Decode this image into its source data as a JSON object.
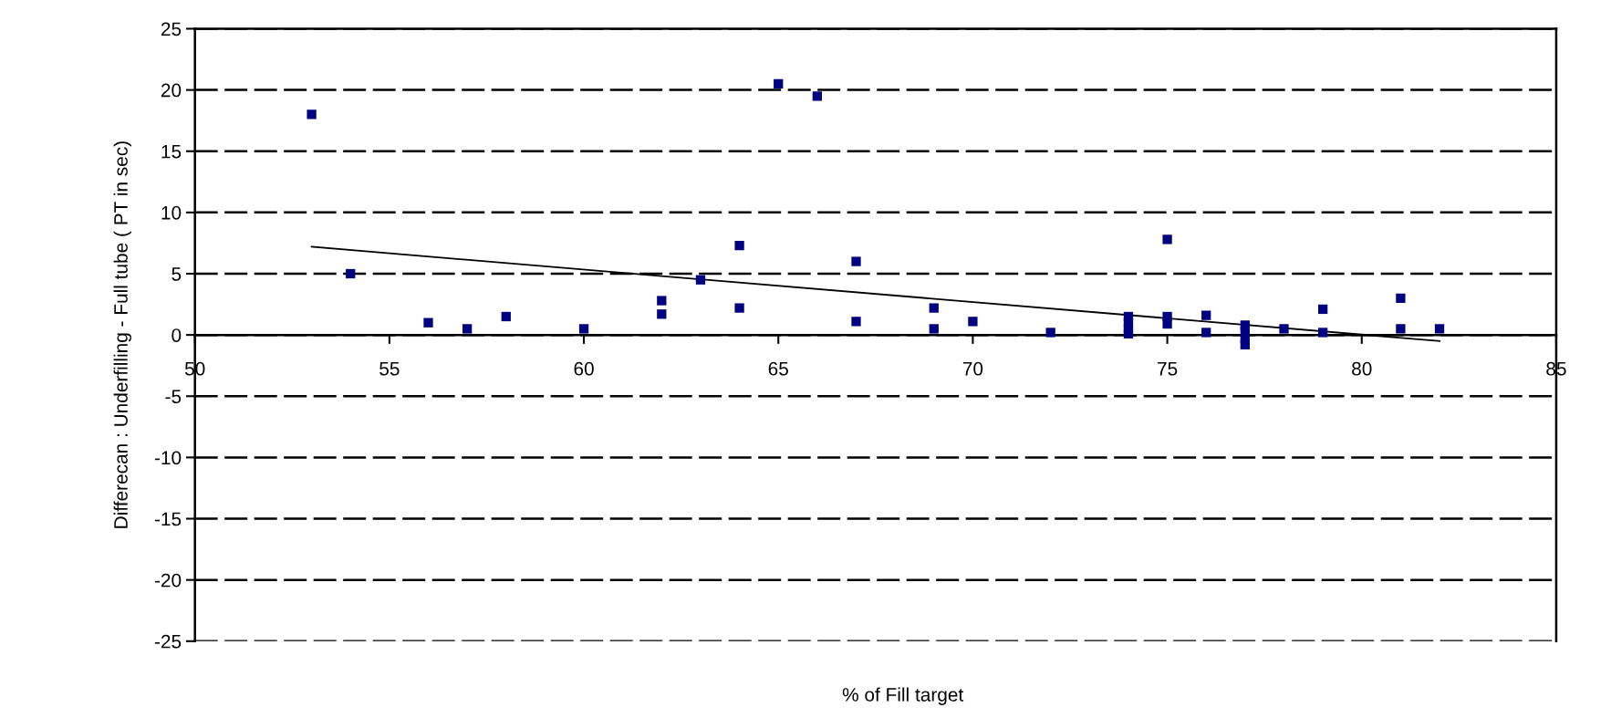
{
  "chart_data": {
    "type": "scatter",
    "xlabel": "% of Fill target",
    "ylabel": "Differecan : Underfilling - Full tube ( PT in sec)",
    "xlim": [
      50,
      85
    ],
    "xticks": [
      50,
      55,
      60,
      65,
      70,
      75,
      80,
      85
    ],
    "ylim": [
      -25,
      25
    ],
    "yticks": [
      -25,
      -20,
      -15,
      -10,
      -5,
      0,
      5,
      10,
      15,
      20,
      25
    ],
    "grid": "y",
    "legend": false,
    "series": [
      {
        "color": "#000080",
        "marker": "square",
        "x": [
          53,
          54,
          56,
          57,
          58,
          60,
          62,
          62,
          63,
          64,
          64,
          65,
          66,
          67,
          67,
          69,
          69,
          70,
          72,
          74,
          74,
          74,
          74,
          75,
          75,
          75,
          76,
          76,
          77,
          77,
          77,
          77,
          78,
          79,
          79,
          81,
          81,
          82
        ],
        "values": [
          18,
          5,
          1,
          0.5,
          1.5,
          0.5,
          2.8,
          1.7,
          4.5,
          7.3,
          2.2,
          20.5,
          19.5,
          6,
          1.1,
          2.2,
          0.5,
          1.1,
          0.2,
          1.5,
          1,
          0.5,
          0.1,
          7.8,
          1.5,
          0.9,
          1.6,
          0.2,
          0.8,
          0.3,
          -0.3,
          -0.8,
          0.5,
          2.1,
          0.2,
          3,
          0.5,
          0.5
        ]
      },
      {
        "type": "line",
        "color": "#000000",
        "marker": "none",
        "x": [
          53,
          82
        ],
        "values": [
          7.2,
          -0.5
        ]
      }
    ]
  }
}
